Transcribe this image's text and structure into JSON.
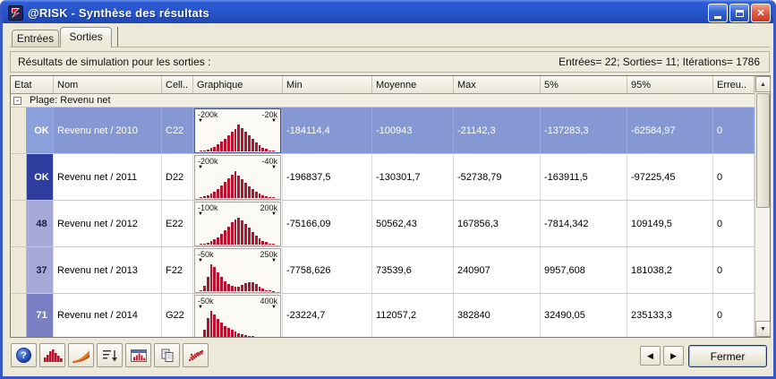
{
  "window": {
    "title": "@RISK - Synthèse des résultats"
  },
  "tabs": {
    "entrees": "Entrées",
    "sorties": "Sorties"
  },
  "info_bar": {
    "left": "Résultats de simulation pour les sorties :",
    "right": "Entrées= 22; Sorties= 11; Itérations= 1786"
  },
  "table": {
    "columns": [
      "Etat",
      "Nom",
      "Cell..",
      "Graphique",
      "Min",
      "Moyenne",
      "Max",
      "5%",
      "95%",
      "Erreu.."
    ],
    "group_row": {
      "collapse_glyph": "-",
      "label": "Plage: Revenu net"
    },
    "rows": [
      {
        "etat": "OK",
        "etat_bg": "#8CA0DB",
        "etat_fg": "#FFFFFF",
        "selected": true,
        "nom": "Revenu net / 2010",
        "cell": "C22",
        "histogram": {
          "left_label": "-200k",
          "right_label": "-20k",
          "bars": [
            3,
            5,
            8,
            12,
            18,
            26,
            36,
            48,
            60,
            72,
            82,
            100,
            86,
            74,
            60,
            46,
            34,
            24,
            15,
            9,
            5,
            3
          ]
        },
        "min": "-184114,4",
        "moyenne": "-100943",
        "max": "-21142,3",
        "p5": "-137283,3",
        "p95": "-62584,97",
        "erreurs": "0"
      },
      {
        "etat": "OK",
        "etat_bg": "#2F3D9E",
        "etat_fg": "#FFFFFF",
        "selected": false,
        "nom": "Revenu net / 2011",
        "cell": "D22",
        "histogram": {
          "left_label": "-200k",
          "right_label": "-40k",
          "bars": [
            3,
            6,
            10,
            16,
            24,
            34,
            46,
            60,
            74,
            88,
            100,
            84,
            70,
            56,
            44,
            34,
            25,
            17,
            11,
            7,
            4,
            2
          ]
        },
        "min": "-196837,5",
        "moyenne": "-130301,7",
        "max": "-52738,79",
        "p5": "-163911,5",
        "p95": "-97225,45",
        "erreurs": "0"
      },
      {
        "etat": "48",
        "etat_bg": "#A6A8D6",
        "etat_fg": "#1A1A4E",
        "selected": false,
        "nom": "Revenu net / 2012",
        "cell": "E22",
        "histogram": {
          "left_label": "-100k",
          "right_label": "200k",
          "bars": [
            2,
            4,
            7,
            12,
            19,
            28,
            40,
            54,
            68,
            82,
            92,
            100,
            90,
            76,
            62,
            48,
            35,
            24,
            15,
            9,
            5,
            2
          ]
        },
        "min": "-75166,09",
        "moyenne": "50562,43",
        "max": "167856,3",
        "p5": "-7814,342",
        "p95": "109149,5",
        "erreurs": "0"
      },
      {
        "etat": "37",
        "etat_bg": "#A6A8D6",
        "etat_fg": "#1A1A4E",
        "selected": false,
        "nom": "Revenu net / 2013",
        "cell": "F22",
        "histogram": {
          "left_label": "-50k",
          "right_label": "250k",
          "bars": [
            4,
            20,
            55,
            100,
            90,
            70,
            52,
            38,
            27,
            20,
            16,
            18,
            24,
            30,
            34,
            32,
            26,
            18,
            10,
            5,
            2,
            1
          ]
        },
        "min": "-7758,626",
        "moyenne": "73539,6",
        "max": "240907",
        "p5": "9957,608",
        "p95": "181038,2",
        "erreurs": "0"
      },
      {
        "etat": "71",
        "etat_bg": "#7B80C4",
        "etat_fg": "#FFFFFF",
        "selected": false,
        "nom": "Revenu net / 2014",
        "cell": "G22",
        "histogram": {
          "left_label": "-50k",
          "right_label": "400k",
          "bars": [
            5,
            30,
            75,
            100,
            88,
            70,
            56,
            45,
            36,
            29,
            23,
            18,
            14,
            11,
            8,
            6,
            4,
            3,
            2,
            1,
            1,
            0
          ]
        },
        "min": "-23224,7",
        "moyenne": "112057,2",
        "max": "382840",
        "p5": "32490,05",
        "p95": "235133,3",
        "erreurs": "0"
      }
    ]
  },
  "scrollbar": {
    "up_glyph": "▲",
    "down_glyph": "▼"
  },
  "toolbar": {
    "buttons": [
      "help",
      "histogram",
      "cumulative-curve",
      "sort",
      "report",
      "copy",
      "scatter"
    ],
    "nav_left_glyph": "◀",
    "nav_right_glyph": "▶",
    "close_label": "Fermer"
  },
  "colors": {
    "selection": "#8598D4",
    "histogram_bar": "#B5122F",
    "titlebar_blue": "#2A52C0",
    "body_beige": "#ECE9D8"
  }
}
